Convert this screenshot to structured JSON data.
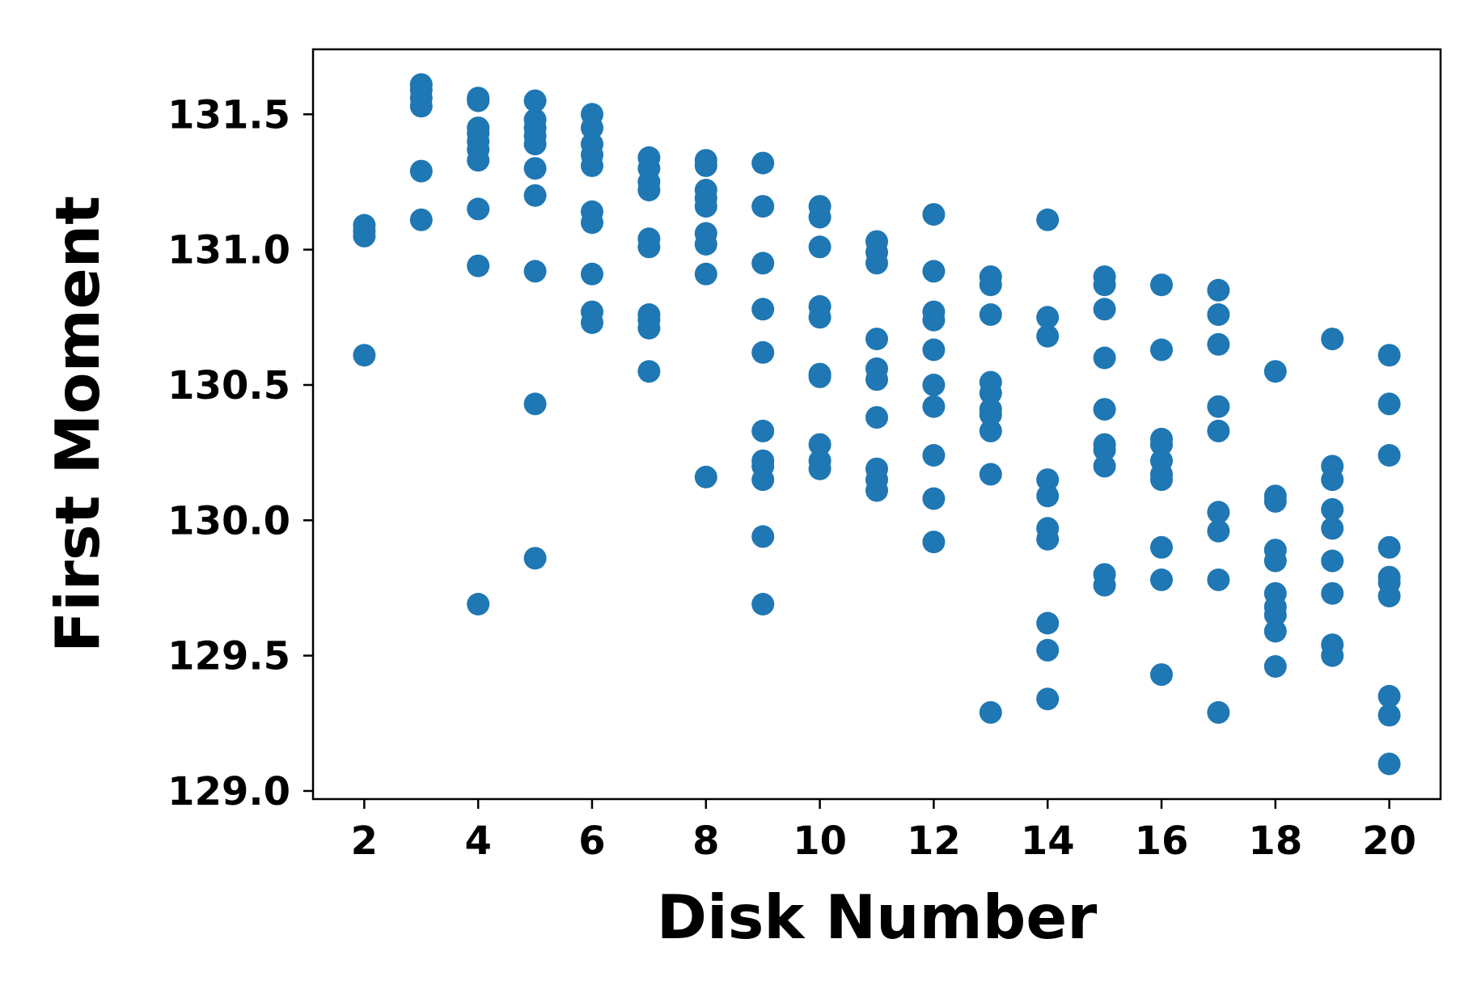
{
  "chart_data": {
    "type": "scatter",
    "xlabel": "Disk Number",
    "ylabel": "First Moment",
    "xlim": [
      1.1,
      20.9
    ],
    "ylim": [
      128.97,
      131.74
    ],
    "xticks": [
      2,
      4,
      6,
      8,
      10,
      12,
      14,
      16,
      18,
      20
    ],
    "yticks": [
      129.0,
      129.5,
      130.0,
      130.5,
      131.0,
      131.5
    ],
    "ytick_labels": [
      "129.0",
      "129.5",
      "130.0",
      "130.5",
      "131.0",
      "131.5"
    ],
    "xtick_labels": [
      "2",
      "4",
      "6",
      "8",
      "10",
      "12",
      "14",
      "16",
      "18",
      "20"
    ],
    "grid": false,
    "color": "#1f77b4",
    "points": [
      [
        2,
        131.09
      ],
      [
        2,
        131.07
      ],
      [
        2,
        131.05
      ],
      [
        2,
        130.61
      ],
      [
        3,
        131.61
      ],
      [
        3,
        131.59
      ],
      [
        3,
        131.56
      ],
      [
        3,
        131.53
      ],
      [
        3,
        131.29
      ],
      [
        3,
        131.11
      ],
      [
        4,
        131.56
      ],
      [
        4,
        131.55
      ],
      [
        4,
        131.45
      ],
      [
        4,
        131.43
      ],
      [
        4,
        131.4
      ],
      [
        4,
        131.37
      ],
      [
        4,
        131.33
      ],
      [
        4,
        131.15
      ],
      [
        4,
        130.94
      ],
      [
        4,
        129.69
      ],
      [
        5,
        131.55
      ],
      [
        5,
        131.48
      ],
      [
        5,
        131.45
      ],
      [
        5,
        131.42
      ],
      [
        5,
        131.39
      ],
      [
        5,
        131.3
      ],
      [
        5,
        131.2
      ],
      [
        5,
        130.92
      ],
      [
        5,
        130.43
      ],
      [
        5,
        129.86
      ],
      [
        6,
        131.5
      ],
      [
        6,
        131.45
      ],
      [
        6,
        131.39
      ],
      [
        6,
        131.35
      ],
      [
        6,
        131.31
      ],
      [
        6,
        131.14
      ],
      [
        6,
        131.1
      ],
      [
        6,
        130.91
      ],
      [
        6,
        130.77
      ],
      [
        6,
        130.73
      ],
      [
        7,
        131.34
      ],
      [
        7,
        131.3
      ],
      [
        7,
        131.25
      ],
      [
        7,
        131.22
      ],
      [
        7,
        131.04
      ],
      [
        7,
        131.01
      ],
      [
        7,
        130.76
      ],
      [
        7,
        130.74
      ],
      [
        7,
        130.71
      ],
      [
        7,
        130.55
      ],
      [
        8,
        131.33
      ],
      [
        8,
        131.31
      ],
      [
        8,
        131.22
      ],
      [
        8,
        131.19
      ],
      [
        8,
        131.16
      ],
      [
        8,
        131.06
      ],
      [
        8,
        131.02
      ],
      [
        8,
        130.91
      ],
      [
        8,
        130.16
      ],
      [
        9,
        131.32
      ],
      [
        9,
        131.16
      ],
      [
        9,
        130.95
      ],
      [
        9,
        130.78
      ],
      [
        9,
        130.62
      ],
      [
        9,
        130.33
      ],
      [
        9,
        130.22
      ],
      [
        9,
        130.2
      ],
      [
        9,
        130.15
      ],
      [
        9,
        129.94
      ],
      [
        9,
        129.69
      ],
      [
        10,
        131.16
      ],
      [
        10,
        131.12
      ],
      [
        10,
        131.01
      ],
      [
        10,
        130.79
      ],
      [
        10,
        130.75
      ],
      [
        10,
        130.54
      ],
      [
        10,
        130.53
      ],
      [
        10,
        130.28
      ],
      [
        10,
        130.22
      ],
      [
        10,
        130.19
      ],
      [
        11,
        131.03
      ],
      [
        11,
        130.99
      ],
      [
        11,
        130.95
      ],
      [
        11,
        130.67
      ],
      [
        11,
        130.56
      ],
      [
        11,
        130.52
      ],
      [
        11,
        130.38
      ],
      [
        11,
        130.19
      ],
      [
        11,
        130.15
      ],
      [
        11,
        130.11
      ],
      [
        12,
        131.13
      ],
      [
        12,
        130.92
      ],
      [
        12,
        130.77
      ],
      [
        12,
        130.74
      ],
      [
        12,
        130.63
      ],
      [
        12,
        130.5
      ],
      [
        12,
        130.42
      ],
      [
        12,
        130.24
      ],
      [
        12,
        130.08
      ],
      [
        12,
        129.92
      ],
      [
        13,
        130.9
      ],
      [
        13,
        130.87
      ],
      [
        13,
        130.76
      ],
      [
        13,
        130.51
      ],
      [
        13,
        130.47
      ],
      [
        13,
        130.41
      ],
      [
        13,
        130.39
      ],
      [
        13,
        130.33
      ],
      [
        13,
        130.17
      ],
      [
        13,
        129.29
      ],
      [
        14,
        131.11
      ],
      [
        14,
        130.75
      ],
      [
        14,
        130.68
      ],
      [
        14,
        130.15
      ],
      [
        14,
        130.09
      ],
      [
        14,
        129.97
      ],
      [
        14,
        129.93
      ],
      [
        14,
        129.62
      ],
      [
        14,
        129.52
      ],
      [
        14,
        129.34
      ],
      [
        15,
        130.9
      ],
      [
        15,
        130.87
      ],
      [
        15,
        130.78
      ],
      [
        15,
        130.6
      ],
      [
        15,
        130.41
      ],
      [
        15,
        130.28
      ],
      [
        15,
        130.26
      ],
      [
        15,
        130.2
      ],
      [
        15,
        129.8
      ],
      [
        15,
        129.76
      ],
      [
        16,
        130.87
      ],
      [
        16,
        130.63
      ],
      [
        16,
        130.3
      ],
      [
        16,
        130.28
      ],
      [
        16,
        130.22
      ],
      [
        16,
        130.17
      ],
      [
        16,
        130.15
      ],
      [
        16,
        129.9
      ],
      [
        16,
        129.78
      ],
      [
        16,
        129.43
      ],
      [
        17,
        130.85
      ],
      [
        17,
        130.76
      ],
      [
        17,
        130.65
      ],
      [
        17,
        130.42
      ],
      [
        17,
        130.33
      ],
      [
        17,
        130.03
      ],
      [
        17,
        129.96
      ],
      [
        17,
        129.78
      ],
      [
        17,
        129.29
      ],
      [
        18,
        130.55
      ],
      [
        18,
        130.09
      ],
      [
        18,
        130.07
      ],
      [
        18,
        129.89
      ],
      [
        18,
        129.85
      ],
      [
        18,
        129.73
      ],
      [
        18,
        129.68
      ],
      [
        18,
        129.65
      ],
      [
        18,
        129.59
      ],
      [
        18,
        129.46
      ],
      [
        19,
        130.67
      ],
      [
        19,
        130.2
      ],
      [
        19,
        130.15
      ],
      [
        19,
        130.04
      ],
      [
        19,
        129.97
      ],
      [
        19,
        129.85
      ],
      [
        19,
        129.73
      ],
      [
        19,
        129.54
      ],
      [
        19,
        129.5
      ],
      [
        20,
        130.61
      ],
      [
        20,
        130.43
      ],
      [
        20,
        130.24
      ],
      [
        20,
        129.9
      ],
      [
        20,
        129.79
      ],
      [
        20,
        129.77
      ],
      [
        20,
        129.72
      ],
      [
        20,
        129.35
      ],
      [
        20,
        129.28
      ],
      [
        20,
        129.1
      ]
    ]
  }
}
